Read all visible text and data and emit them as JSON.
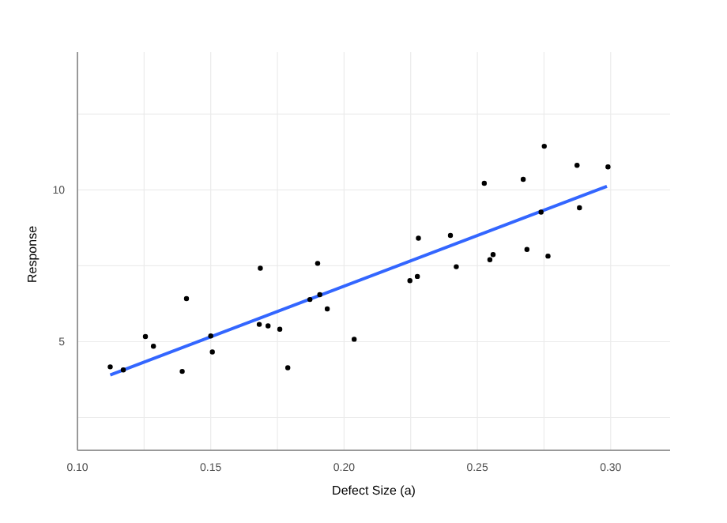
{
  "chart_data": {
    "type": "scatter",
    "xlabel": "Defect Size (a)",
    "ylabel": "Response",
    "xlim": [
      0.1,
      0.3223
    ],
    "ylim": [
      1.42,
      14.54
    ],
    "xticks": [
      {
        "value": 0.1,
        "label": "0.10"
      },
      {
        "value": 0.125,
        "label": null
      },
      {
        "value": 0.15,
        "label": "0.15"
      },
      {
        "value": 0.175,
        "label": null
      },
      {
        "value": 0.2,
        "label": "0.20"
      },
      {
        "value": 0.225,
        "label": null
      },
      {
        "value": 0.25,
        "label": "0.25"
      },
      {
        "value": 0.275,
        "label": null
      },
      {
        "value": 0.3,
        "label": "0.30"
      }
    ],
    "yticks": [
      {
        "value": 2.5,
        "label": null
      },
      5,
      {
        "value": 7.5,
        "label": null
      },
      10,
      {
        "value": 12.5,
        "label": null
      }
    ],
    "grid": true,
    "marker": "circle",
    "series": [
      {
        "color": "#000000",
        "x": [
          0.1123,
          0.1172,
          0.1255,
          0.1285,
          0.1393,
          0.1409,
          0.15,
          0.1506,
          0.1682,
          0.1686,
          0.1715,
          0.1759,
          0.1789,
          0.1872,
          0.1901,
          0.1909,
          0.1937,
          0.2038,
          0.2247,
          0.2275,
          0.2279,
          0.2399,
          0.2421,
          0.2526,
          0.2547,
          0.2559,
          0.2672,
          0.2686,
          0.2739,
          0.2751,
          0.2765,
          0.2874,
          0.2883,
          0.299
        ],
        "values": [
          4.17,
          4.07,
          5.17,
          4.85,
          4.02,
          6.42,
          5.19,
          4.66,
          5.57,
          7.42,
          5.52,
          5.41,
          4.14,
          6.39,
          7.58,
          6.55,
          6.08,
          5.08,
          7.01,
          7.15,
          8.41,
          8.5,
          7.47,
          10.22,
          7.7,
          7.87,
          10.35,
          8.04,
          9.27,
          11.44,
          7.82,
          10.81,
          9.41,
          10.76
        ]
      },
      {
        "type": "line",
        "color": "#3366ff",
        "x": [
          0.1123,
          0.2986
        ],
        "values": [
          3.9,
          10.12
        ],
        "marker": "none"
      }
    ]
  }
}
